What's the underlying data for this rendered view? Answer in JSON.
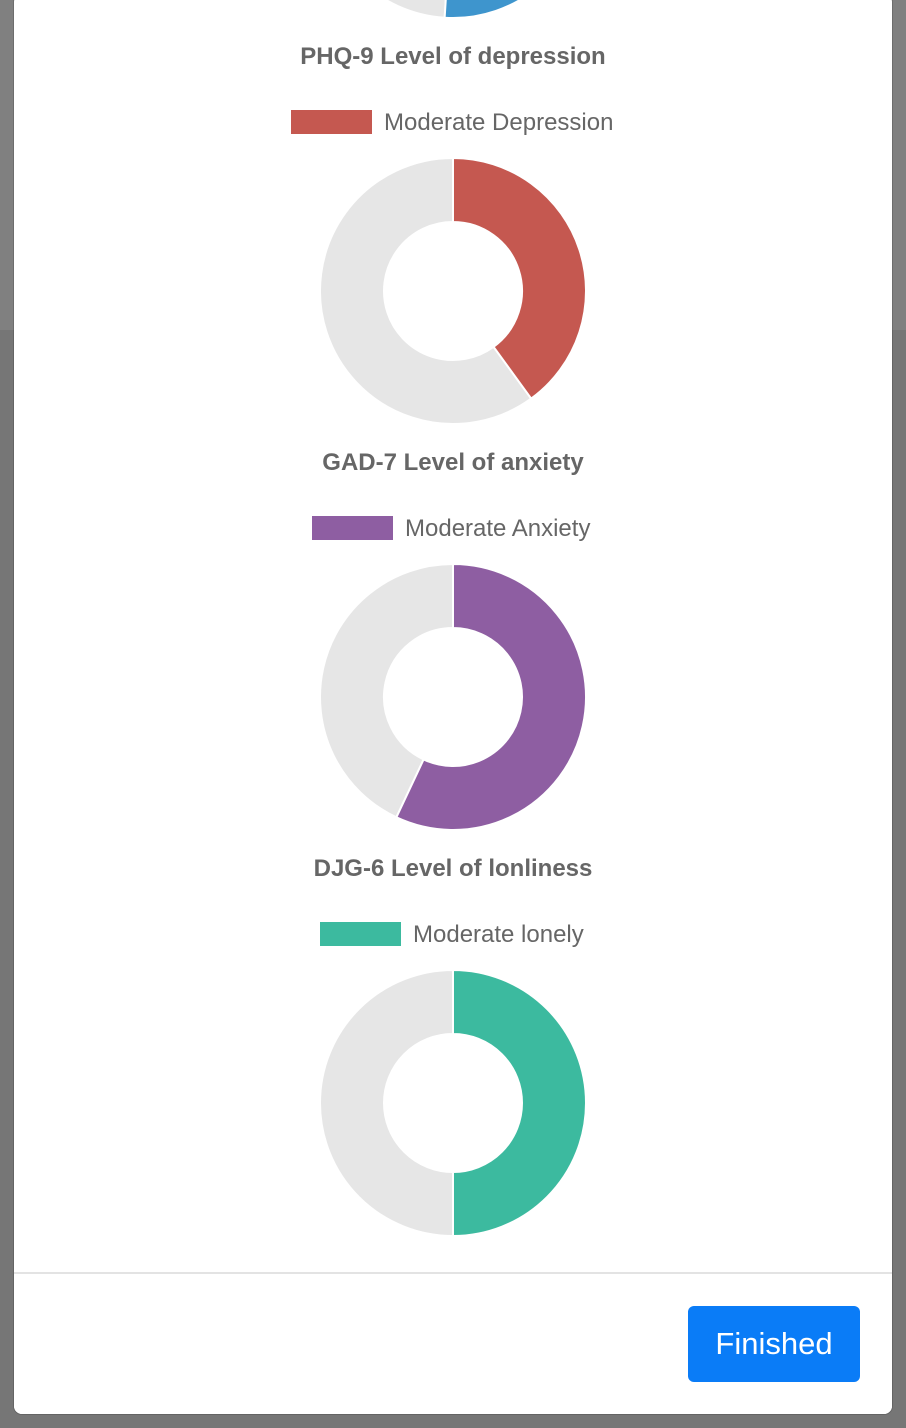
{
  "chart_data": [
    {
      "type": "pie",
      "variant": "doughnut",
      "title": "PHQ-9 Level of depression",
      "legend": "Moderate Depression",
      "color": "#c55850",
      "background_color": "#e6e6e6",
      "value": 0.4
    },
    {
      "type": "pie",
      "variant": "doughnut",
      "title": "GAD-7 Level of anxiety",
      "legend": "Moderate Anxiety",
      "color": "#8e5ea2",
      "background_color": "#e6e6e6",
      "value": 0.57
    },
    {
      "type": "pie",
      "variant": "doughnut",
      "title": "DJG-6 Level of lonliness",
      "legend": "Moderate lonely",
      "color": "#3cba9f",
      "background_color": "#e6e6e6",
      "value": 0.5
    }
  ],
  "partial_chart": {
    "color": "#3e95cd",
    "background_color": "#e6e6e6"
  },
  "footer": {
    "finished_label": "Finished"
  }
}
